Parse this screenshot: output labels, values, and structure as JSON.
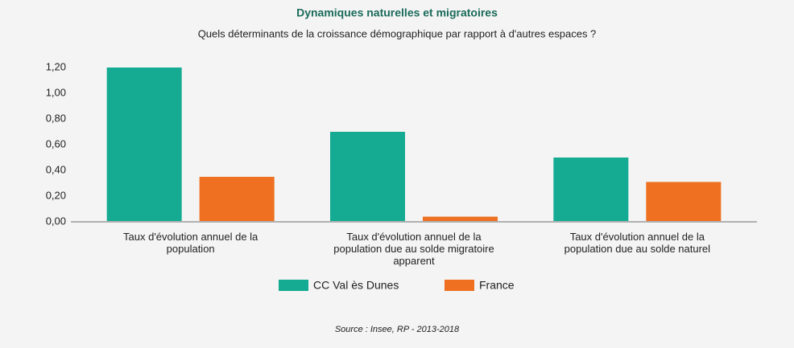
{
  "chart_data": {
    "type": "bar",
    "title": "Dynamiques naturelles et migratoires",
    "subtitle": "Quels déterminants de la croissance démographique par rapport à d'autres espaces ?",
    "categories": [
      "Taux d'évolution annuel de la population",
      "Taux d'évolution annuel de la population due au solde migratoire apparent",
      "Taux d'évolution annuel de la population due au solde naturel"
    ],
    "series": [
      {
        "name": "CC Val ès Dunes",
        "color": "#14ab92",
        "values": [
          1.2,
          0.7,
          0.5
        ]
      },
      {
        "name": "France",
        "color": "#ee7020",
        "values": [
          0.35,
          0.04,
          0.31
        ]
      }
    ],
    "ylim": [
      0,
      1.2
    ],
    "yticks": [
      {
        "value": 0,
        "label": "0,00"
      },
      {
        "value": 0.2,
        "label": "0,20"
      },
      {
        "value": 0.4,
        "label": "0,40"
      },
      {
        "value": 0.6,
        "label": "0,60"
      },
      {
        "value": 0.8,
        "label": "0,80"
      },
      {
        "value": 1.0,
        "label": "1,00"
      },
      {
        "value": 1.2,
        "label": "1,20"
      }
    ],
    "grid": false,
    "source": "Source : Insee, RP - 2013-2018"
  }
}
